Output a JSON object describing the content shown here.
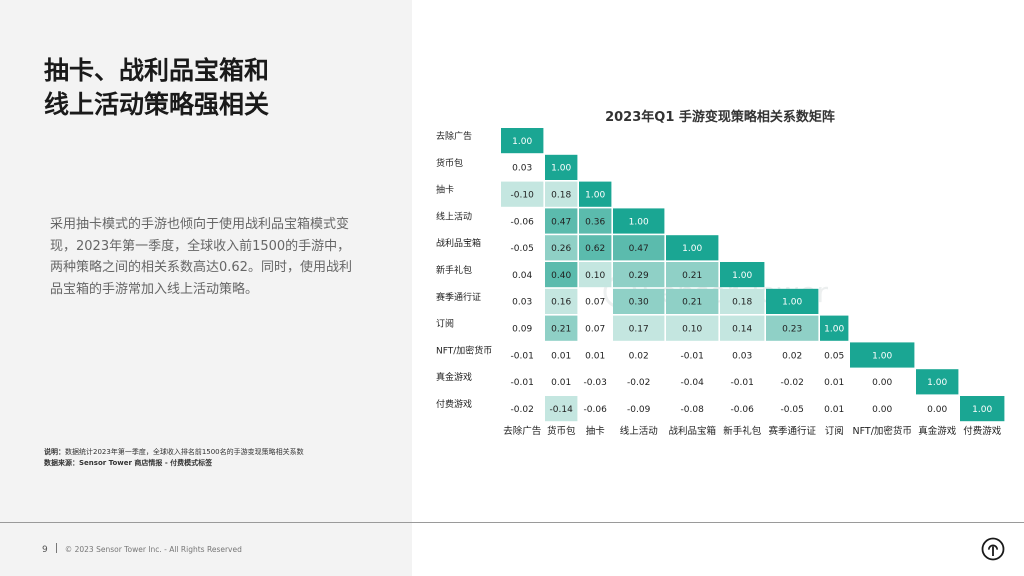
{
  "headline": {
    "line1": "抽卡、战利品宝箱和",
    "line2": "线上活动策略强相关"
  },
  "body_text": "采用抽卡模式的手游也倾向于使用战利品宝箱模式变现，2023年第一季度，全球收入前1500的手游中，两种策略之间的相关系数高达0.62。同时，使用战利品宝箱的手游常加入线上活动策略。",
  "note": {
    "label1": "说明：",
    "text1": "数据统计2023年第一季度，全球收入排名前1500名的手游变现策略相关系数",
    "label2": "数据来源：",
    "text2": "Sensor Tower 商店情报 - 付费模式标签"
  },
  "footer": {
    "page": "9",
    "copyright": "© 2023 Sensor Tower Inc. - All Rights Reserved"
  },
  "watermark": "Sensor Tower",
  "icons": {
    "logo": "sensor-tower-logo-icon"
  },
  "colors": {
    "diagonal": "#1aa693",
    "high": "#5bbbad",
    "mid": "#8fd0c6",
    "low": "#c4e6e0",
    "panel": "#f3f3f3"
  },
  "chart_data": {
    "type": "heatmap",
    "title": "2023年Q1 手游变现策略相关系数矩阵",
    "labels": [
      "去除广告",
      "货币包",
      "抽卡",
      "线上活动",
      "战利品宝箱",
      "新手礼包",
      "赛季通行证",
      "订阅",
      "NFT/加密货币",
      "真金游戏",
      "付费游戏"
    ],
    "matrix": [
      [
        "1.00"
      ],
      [
        "0.03",
        "1.00"
      ],
      [
        "-0.10",
        "0.18",
        "1.00"
      ],
      [
        "-0.06",
        "0.47",
        "0.36",
        "1.00"
      ],
      [
        "-0.05",
        "0.26",
        "0.62",
        "0.47",
        "1.00"
      ],
      [
        "0.04",
        "0.40",
        "0.10",
        "0.29",
        "0.21",
        "1.00"
      ],
      [
        "0.03",
        "0.16",
        "0.07",
        "0.30",
        "0.21",
        "0.18",
        "1.00"
      ],
      [
        "0.09",
        "0.21",
        "0.07",
        "0.17",
        "0.10",
        "0.14",
        "0.23",
        "1.00"
      ],
      [
        "-0.01",
        "0.01",
        "0.01",
        "0.02",
        "-0.01",
        "0.03",
        "0.02",
        "0.05",
        "1.00"
      ],
      [
        "-0.01",
        "0.01",
        "-0.03",
        "-0.02",
        "-0.04",
        "-0.01",
        "-0.02",
        "0.01",
        "0.00",
        "1.00"
      ],
      [
        "-0.02",
        "-0.14",
        "-0.06",
        "-0.09",
        "-0.08",
        "-0.06",
        "-0.05",
        "0.01",
        "0.00",
        "0.00",
        "1.00"
      ]
    ]
  }
}
